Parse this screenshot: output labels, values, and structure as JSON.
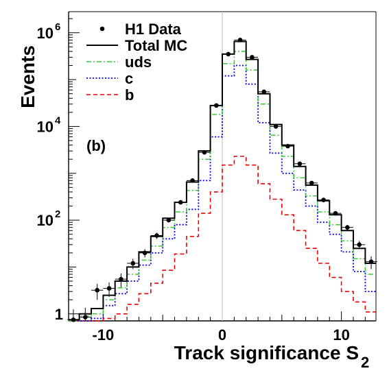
{
  "chart_data": {
    "type": "histogram",
    "xlabel": "Track significance S",
    "xlabel_subscript": "2",
    "ylabel": "Events",
    "xlim": [
      -12.9,
      12.9
    ],
    "ylim_log10": [
      -0.15,
      6.45
    ],
    "yscale": "log",
    "panel_label": "(b)",
    "grid": false,
    "x_ticks": [
      {
        "value": -10,
        "label": "-10"
      },
      {
        "value": 0,
        "label": "0"
      },
      {
        "value": 10,
        "label": "10"
      }
    ],
    "y_ticks": [
      {
        "exp": 0,
        "base": "1",
        "sup": ""
      },
      {
        "exp": 2,
        "base": "10",
        "sup": "2"
      },
      {
        "exp": 4,
        "base": "10",
        "sup": "4"
      },
      {
        "exp": 6,
        "base": "10",
        "sup": "6"
      }
    ],
    "bin_edges": [
      -13,
      -12,
      -11,
      -10,
      -9,
      -8,
      -7,
      -6,
      -5,
      -4,
      -3,
      -2,
      -1,
      0,
      1,
      2,
      3,
      4,
      5,
      6,
      7,
      8,
      9,
      10,
      11,
      12,
      13
    ],
    "legend": [
      {
        "label": "H1 Data",
        "style": "marker"
      },
      {
        "label": "Total MC",
        "style": "solid"
      },
      {
        "label": "uds",
        "style": "dashdot"
      },
      {
        "label": "c",
        "style": "dotted"
      },
      {
        "label": "b",
        "style": "dashed"
      }
    ],
    "series": [
      {
        "name": "Total MC",
        "style": "solid",
        "color": "#000000",
        "values": [
          0.75,
          1.0,
          1.3,
          2.5,
          5.0,
          10,
          21,
          45,
          110,
          240,
          650,
          3000,
          28000,
          350000,
          650000,
          270000,
          50000,
          11000,
          4000,
          1400,
          560,
          260,
          130,
          60,
          25,
          12
        ]
      },
      {
        "name": "uds",
        "style": "dashdot",
        "color": "#33cc33",
        "values": [
          0.7,
          0.9,
          1.0,
          2.0,
          3.6,
          7.0,
          14,
          28,
          70,
          150,
          430,
          2000,
          18000,
          220000,
          400000,
          160000,
          30000,
          6500,
          2300,
          800,
          330,
          150,
          80,
          36,
          15,
          7
        ]
      },
      {
        "name": "c",
        "style": "dotted",
        "color": "#0000ee",
        "values": [
          0.5,
          0.6,
          0.8,
          1.5,
          2.7,
          5.0,
          11,
          20,
          40,
          80,
          170,
          700,
          6000,
          120000,
          200000,
          80000,
          12000,
          2700,
          1000,
          440,
          200,
          90,
          50,
          21,
          8,
          3
        ]
      },
      {
        "name": "b",
        "style": "dashed",
        "color": "#ee0000",
        "values": [
          0.4,
          0.5,
          0.6,
          0.8,
          1.0,
          1.6,
          2.7,
          4.5,
          8.5,
          19,
          45,
          140,
          400,
          1500,
          2300,
          1500,
          600,
          280,
          130,
          60,
          25,
          12,
          6,
          3,
          1.8,
          1.1
        ]
      },
      {
        "name": "H1 Data",
        "style": "marker",
        "color": "#000000",
        "x": [
          -12.5,
          -11.5,
          -10.5,
          -9.5,
          -8.5,
          -7.5,
          -6.5,
          -5.5,
          -4.5,
          -3.5,
          -2.5,
          -1.5,
          -0.5,
          0.5,
          1.5,
          2.5,
          3.5,
          4.5,
          5.5,
          6.5,
          7.5,
          8.5,
          9.5,
          10.5,
          11.5,
          12.5
        ],
        "values": [
          0.75,
          0.85,
          3.2,
          3.5,
          5.5,
          12,
          20,
          47,
          100,
          240,
          700,
          2800,
          28000,
          350000,
          700000,
          300000,
          55000,
          10000,
          3800,
          1600,
          620,
          270,
          140,
          70,
          30,
          13
        ],
        "errors": [
          0.5,
          0.5,
          1.2,
          1.2,
          1.8,
          3,
          4,
          7,
          10,
          16,
          27,
          53,
          170,
          600,
          840,
          550,
          230,
          100,
          62,
          40,
          25,
          17,
          12,
          9,
          6,
          4
        ]
      }
    ]
  }
}
